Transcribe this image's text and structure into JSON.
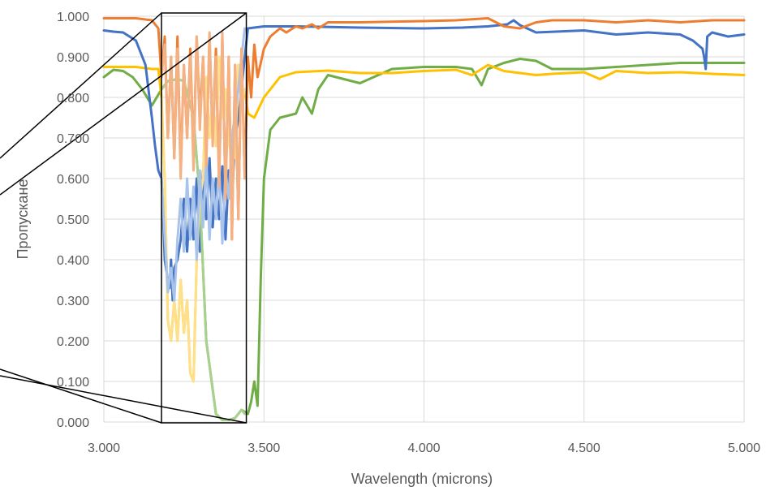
{
  "chart_data": {
    "type": "line",
    "xlabel": "Wavelength (microns)",
    "ylabel": "Пропускане",
    "xlim": [
      3.0,
      5.0
    ],
    "ylim": [
      0.0,
      1.0
    ],
    "x_ticks": [
      "3.000",
      "3.500",
      "4.000",
      "4.500",
      "5.000"
    ],
    "x_tick_values": [
      3.0,
      3.5,
      4.0,
      4.5,
      5.0
    ],
    "y_ticks": [
      "0.000",
      "0.100",
      "0.200",
      "0.300",
      "0.400",
      "0.500",
      "0.600",
      "0.700",
      "0.800",
      "0.900",
      "1.000"
    ],
    "y_tick_values": [
      0.0,
      0.1,
      0.2,
      0.3,
      0.4,
      0.5,
      0.6,
      0.7,
      0.8,
      0.9,
      1.0
    ],
    "grid": {
      "horizontal": true,
      "vertical": true
    },
    "zoom_box": {
      "x_range": [
        3.18,
        3.445
      ],
      "y_range": [
        0.0,
        1.0
      ]
    },
    "series": [
      {
        "color": "#4472C4",
        "x": [
          3.0,
          3.03,
          3.06,
          3.08,
          3.1,
          3.13,
          3.15,
          3.16,
          3.17,
          3.18,
          3.185,
          3.19,
          3.2,
          3.205,
          3.21,
          3.215,
          3.22,
          3.23,
          3.24,
          3.25,
          3.26,
          3.27,
          3.28,
          3.29,
          3.3,
          3.31,
          3.32,
          3.33,
          3.34,
          3.35,
          3.36,
          3.37,
          3.38,
          3.39,
          3.4,
          3.41,
          3.42,
          3.43,
          3.44,
          3.45,
          3.5,
          3.6,
          3.8,
          4.0,
          4.12,
          4.2,
          4.26,
          4.28,
          4.3,
          4.35,
          4.5,
          4.6,
          4.7,
          4.8,
          4.84,
          4.87,
          4.875,
          4.88,
          4.885,
          4.9,
          4.95,
          5.0
        ],
        "y": [
          0.965,
          0.962,
          0.96,
          0.95,
          0.94,
          0.88,
          0.75,
          0.68,
          0.62,
          0.6,
          0.52,
          0.4,
          0.35,
          0.33,
          0.4,
          0.3,
          0.38,
          0.4,
          0.45,
          0.55,
          0.42,
          0.55,
          0.45,
          0.6,
          0.42,
          0.62,
          0.5,
          0.65,
          0.48,
          0.6,
          0.5,
          0.63,
          0.45,
          0.62,
          0.55,
          0.7,
          0.75,
          0.82,
          0.9,
          0.97,
          0.975,
          0.975,
          0.972,
          0.97,
          0.972,
          0.975,
          0.98,
          0.99,
          0.978,
          0.96,
          0.965,
          0.955,
          0.96,
          0.955,
          0.94,
          0.92,
          0.9,
          0.87,
          0.95,
          0.96,
          0.95,
          0.955
        ]
      },
      {
        "color": "#ED7D31",
        "x": [
          3.0,
          3.05,
          3.1,
          3.15,
          3.17,
          3.18,
          3.19,
          3.2,
          3.21,
          3.22,
          3.23,
          3.24,
          3.25,
          3.26,
          3.27,
          3.28,
          3.29,
          3.3,
          3.31,
          3.32,
          3.33,
          3.34,
          3.35,
          3.36,
          3.37,
          3.38,
          3.39,
          3.4,
          3.41,
          3.42,
          3.43,
          3.44,
          3.45,
          3.46,
          3.47,
          3.48,
          3.5,
          3.52,
          3.55,
          3.57,
          3.6,
          3.62,
          3.65,
          3.67,
          3.7,
          3.8,
          4.0,
          4.1,
          4.2,
          4.25,
          4.3,
          4.35,
          4.4,
          4.5,
          4.6,
          4.7,
          4.8,
          4.9,
          5.0
        ],
        "y": [
          0.995,
          0.995,
          0.995,
          0.99,
          0.97,
          0.85,
          0.95,
          0.7,
          0.9,
          0.65,
          0.95,
          0.62,
          0.88,
          0.7,
          0.92,
          0.65,
          0.95,
          0.75,
          0.9,
          0.65,
          0.95,
          0.7,
          0.92,
          0.6,
          0.95,
          0.55,
          0.9,
          0.45,
          0.88,
          0.5,
          0.92,
          0.6,
          0.9,
          0.8,
          0.93,
          0.85,
          0.92,
          0.95,
          0.97,
          0.96,
          0.975,
          0.97,
          0.98,
          0.97,
          0.985,
          0.985,
          0.988,
          0.99,
          0.995,
          0.975,
          0.97,
          0.985,
          0.99,
          0.99,
          0.985,
          0.99,
          0.985,
          0.99,
          0.99
        ]
      },
      {
        "color": "#FFC000",
        "x": [
          3.0,
          3.05,
          3.1,
          3.15,
          3.17,
          3.18,
          3.19,
          3.2,
          3.21,
          3.22,
          3.23,
          3.24,
          3.25,
          3.26,
          3.27,
          3.28,
          3.29,
          3.3,
          3.31,
          3.32,
          3.33,
          3.34,
          3.35,
          3.36,
          3.37,
          3.38,
          3.39,
          3.4,
          3.41,
          3.42,
          3.43,
          3.44,
          3.45,
          3.47,
          3.5,
          3.55,
          3.6,
          3.7,
          3.8,
          3.9,
          4.0,
          4.1,
          4.15,
          4.2,
          4.25,
          4.3,
          4.35,
          4.4,
          4.45,
          4.5,
          4.55,
          4.6,
          4.7,
          4.8,
          4.9,
          5.0
        ],
        "y": [
          0.875,
          0.875,
          0.875,
          0.87,
          0.87,
          0.8,
          0.6,
          0.25,
          0.2,
          0.3,
          0.2,
          0.35,
          0.22,
          0.3,
          0.12,
          0.1,
          0.4,
          0.55,
          0.6,
          0.85,
          0.7,
          0.8,
          0.68,
          0.9,
          0.75,
          0.82,
          0.68,
          0.72,
          0.65,
          0.88,
          0.78,
          0.82,
          0.76,
          0.75,
          0.8,
          0.85,
          0.862,
          0.866,
          0.86,
          0.86,
          0.865,
          0.868,
          0.855,
          0.88,
          0.865,
          0.86,
          0.855,
          0.858,
          0.86,
          0.862,
          0.845,
          0.865,
          0.86,
          0.862,
          0.858,
          0.855
        ]
      },
      {
        "color": "#70AD47",
        "x": [
          3.0,
          3.03,
          3.06,
          3.09,
          3.12,
          3.15,
          3.18,
          3.2,
          3.23,
          3.25,
          3.28,
          3.3,
          3.32,
          3.35,
          3.37,
          3.39,
          3.41,
          3.43,
          3.45,
          3.46,
          3.47,
          3.48,
          3.49,
          3.5,
          3.52,
          3.55,
          3.6,
          3.62,
          3.65,
          3.67,
          3.7,
          3.75,
          3.8,
          3.9,
          4.0,
          4.1,
          4.15,
          4.18,
          4.2,
          4.25,
          4.3,
          4.35,
          4.4,
          4.5,
          4.6,
          4.7,
          4.8,
          4.9,
          5.0
        ],
        "y": [
          0.85,
          0.868,
          0.865,
          0.85,
          0.82,
          0.78,
          0.82,
          0.84,
          0.845,
          0.84,
          0.75,
          0.55,
          0.2,
          0.02,
          0.005,
          0.005,
          0.01,
          0.03,
          0.02,
          0.05,
          0.1,
          0.04,
          0.35,
          0.6,
          0.72,
          0.75,
          0.76,
          0.8,
          0.76,
          0.82,
          0.855,
          0.845,
          0.835,
          0.87,
          0.875,
          0.875,
          0.87,
          0.83,
          0.87,
          0.885,
          0.895,
          0.89,
          0.87,
          0.87,
          0.875,
          0.88,
          0.885,
          0.885,
          0.885
        ]
      },
      {
        "color": "#A9C4EB",
        "x": [
          3.18,
          3.2,
          3.21,
          3.22,
          3.23,
          3.24,
          3.25,
          3.26,
          3.27,
          3.28,
          3.29,
          3.3,
          3.31,
          3.32,
          3.33,
          3.34,
          3.35,
          3.36,
          3.37,
          3.38,
          3.39,
          3.4,
          3.41,
          3.42,
          3.43,
          3.44
        ],
        "y": [
          0.6,
          0.32,
          0.38,
          0.3,
          0.45,
          0.55,
          0.42,
          0.6,
          0.45,
          0.58,
          0.4,
          0.62,
          0.48,
          0.65,
          0.45,
          0.6,
          0.5,
          0.63,
          0.44,
          0.62,
          0.55,
          0.7,
          0.76,
          0.82,
          0.9,
          0.97
        ]
      },
      {
        "color": "#F4B183",
        "x": [
          3.18,
          3.19,
          3.2,
          3.21,
          3.22,
          3.23,
          3.24,
          3.25,
          3.26,
          3.27,
          3.28,
          3.29,
          3.3,
          3.31,
          3.32,
          3.33,
          3.34,
          3.35,
          3.36,
          3.37,
          3.38,
          3.39,
          3.4,
          3.41,
          3.42,
          3.43,
          3.44
        ],
        "y": [
          0.85,
          0.93,
          0.7,
          0.9,
          0.65,
          0.92,
          0.6,
          0.88,
          0.7,
          0.9,
          0.62,
          0.95,
          0.72,
          0.9,
          0.63,
          0.96,
          0.68,
          0.9,
          0.58,
          0.96,
          0.55,
          0.9,
          0.45,
          0.88,
          0.5,
          0.92,
          0.6
        ]
      },
      {
        "color": "#FFE08A",
        "x": [
          3.18,
          3.19,
          3.2,
          3.21,
          3.22,
          3.23,
          3.24,
          3.25,
          3.26,
          3.27,
          3.28,
          3.29,
          3.3,
          3.31,
          3.32,
          3.33,
          3.34,
          3.35,
          3.36,
          3.37,
          3.38,
          3.39,
          3.4,
          3.41,
          3.42,
          3.43,
          3.44
        ],
        "y": [
          0.8,
          0.6,
          0.25,
          0.2,
          0.3,
          0.2,
          0.35,
          0.22,
          0.3,
          0.12,
          0.1,
          0.4,
          0.55,
          0.6,
          0.85,
          0.7,
          0.8,
          0.68,
          0.9,
          0.75,
          0.82,
          0.68,
          0.72,
          0.65,
          0.88,
          0.78,
          0.82
        ]
      },
      {
        "color": "#A9D18E",
        "x": [
          3.18,
          3.2,
          3.23,
          3.25,
          3.28,
          3.3,
          3.32,
          3.35,
          3.37,
          3.39,
          3.41,
          3.43,
          3.44
        ],
        "y": [
          0.82,
          0.84,
          0.845,
          0.84,
          0.75,
          0.55,
          0.2,
          0.02,
          0.005,
          0.005,
          0.01,
          0.03,
          0.02
        ]
      }
    ]
  }
}
